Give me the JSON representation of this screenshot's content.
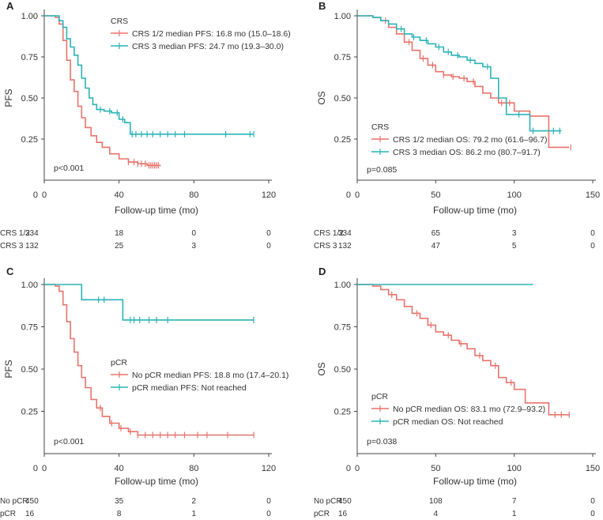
{
  "chart_data": [
    {
      "panel": "A",
      "type": "line",
      "xlabel": "Follow-up time (mo)",
      "ylabel": "PFS",
      "xlim": [
        0,
        120
      ],
      "xticks": [
        0,
        40,
        80,
        120
      ],
      "ylim": [
        0,
        1
      ],
      "yticks": [
        0.25,
        0.5,
        0.75,
        1.0
      ],
      "ytick_labels": [
        "0.25",
        "0.50",
        "0.75",
        "1.00"
      ],
      "legend_title": "CRS",
      "pvalue": "p<0.001",
      "series": [
        {
          "name": "CRS 1/2",
          "label": "CRS 1/2 median PFS: 16.8 mo (15.0–18.6)",
          "color": "#e8736c",
          "x": [
            0,
            6,
            8,
            10,
            12,
            14,
            16,
            18,
            20,
            22,
            25,
            28,
            31,
            35,
            40,
            45,
            50,
            55,
            62
          ],
          "y": [
            1.0,
            0.99,
            0.95,
            0.85,
            0.73,
            0.61,
            0.54,
            0.45,
            0.38,
            0.32,
            0.27,
            0.23,
            0.2,
            0.16,
            0.13,
            0.11,
            0.1,
            0.09,
            0.085
          ],
          "censor_x": [
            45,
            48,
            50,
            52,
            54,
            56,
            57,
            58,
            59,
            60,
            61
          ]
        },
        {
          "name": "CRS 3",
          "label": "CRS 3 median PFS: 24.7 mo (19.3–30.0)",
          "color": "#2ab3b7",
          "x": [
            0,
            8,
            10,
            12,
            14,
            16,
            18,
            20,
            22,
            24,
            26,
            28,
            32,
            36,
            40,
            43,
            46,
            112
          ],
          "y": [
            1.0,
            0.97,
            0.93,
            0.86,
            0.81,
            0.76,
            0.7,
            0.62,
            0.56,
            0.5,
            0.46,
            0.43,
            0.42,
            0.41,
            0.37,
            0.35,
            0.28,
            0.28
          ],
          "censor_x": [
            30,
            35,
            39,
            42,
            47,
            49,
            52,
            55,
            58,
            62,
            66,
            70,
            75,
            97,
            110,
            112
          ]
        }
      ],
      "risk_table": {
        "times": [
          0,
          40,
          80,
          120
        ],
        "rows": [
          {
            "label": "CRS 1/2",
            "values": [
              "334",
              "18",
              "0",
              "0"
            ]
          },
          {
            "label": "CRS 3",
            "values": [
              "132",
              "25",
              "3",
              "0"
            ]
          }
        ]
      }
    },
    {
      "panel": "B",
      "type": "line",
      "xlabel": "Follow-up time (mo)",
      "ylabel": "OS",
      "xlim": [
        0,
        150
      ],
      "xticks": [
        0,
        50,
        100,
        150
      ],
      "ylim": [
        0,
        1
      ],
      "yticks": [
        0.25,
        0.5,
        0.75,
        1.0
      ],
      "ytick_labels": [
        "0.25",
        "0.50",
        "0.75",
        "1.00"
      ],
      "legend_title": "CRS",
      "pvalue": "p=0.085",
      "series": [
        {
          "name": "CRS 1/2",
          "label": "CRS 1/2 median OS: 79.2 mo (61.6–96.7)",
          "color": "#e8736c",
          "x": [
            0,
            10,
            15,
            20,
            25,
            30,
            35,
            40,
            45,
            50,
            55,
            60,
            65,
            70,
            75,
            80,
            85,
            90,
            95,
            100,
            110,
            122,
            135
          ],
          "y": [
            1.0,
            0.99,
            0.97,
            0.93,
            0.89,
            0.84,
            0.79,
            0.74,
            0.7,
            0.66,
            0.64,
            0.63,
            0.62,
            0.6,
            0.57,
            0.53,
            0.5,
            0.47,
            0.47,
            0.42,
            0.39,
            0.2,
            0.2
          ],
          "censor_x": [
            18,
            33,
            42,
            48,
            55,
            61,
            68,
            74,
            92,
            97,
            136
          ]
        },
        {
          "name": "CRS 3",
          "label": "CRS 3 median OS: 86.2 mo (80.7–91.7)",
          "color": "#2ab3b7",
          "x": [
            0,
            10,
            15,
            20,
            25,
            30,
            35,
            40,
            45,
            50,
            55,
            60,
            65,
            70,
            75,
            80,
            85,
            90,
            95,
            100,
            105,
            110,
            130
          ],
          "y": [
            1.0,
            0.99,
            0.97,
            0.95,
            0.92,
            0.89,
            0.87,
            0.85,
            0.83,
            0.81,
            0.78,
            0.76,
            0.75,
            0.73,
            0.71,
            0.69,
            0.62,
            0.5,
            0.4,
            0.4,
            0.4,
            0.3,
            0.3
          ],
          "censor_x": [
            28,
            36,
            44,
            52,
            58,
            64,
            72,
            83,
            103,
            112,
            125,
            129
          ]
        }
      ],
      "risk_table": {
        "times": [
          0,
          50,
          100,
          150
        ],
        "rows": [
          {
            "label": "CRS 1/2",
            "values": [
              "334",
              "65",
              "3",
              "0"
            ]
          },
          {
            "label": "CRS 3",
            "values": [
              "132",
              "47",
              "5",
              "0"
            ]
          }
        ]
      }
    },
    {
      "panel": "C",
      "type": "line",
      "xlabel": "Follow-up time (mo)",
      "ylabel": "PFS",
      "xlim": [
        0,
        120
      ],
      "xticks": [
        0,
        40,
        80,
        120
      ],
      "ylim": [
        0,
        1
      ],
      "yticks": [
        0.25,
        0.5,
        0.75,
        1.0
      ],
      "ytick_labels": [
        "0.25",
        "0.50",
        "0.75",
        "1.00"
      ],
      "legend_title": "pCR",
      "pvalue": "p<0.001",
      "series": [
        {
          "name": "No pCR",
          "label": "No pCR median PFS: 18.8 mo (17.4–20.1)",
          "color": "#e8736c",
          "x": [
            0,
            6,
            8,
            10,
            12,
            14,
            16,
            18,
            20,
            22,
            25,
            28,
            31,
            35,
            40,
            45,
            50,
            112
          ],
          "y": [
            1.0,
            0.99,
            0.96,
            0.88,
            0.78,
            0.68,
            0.6,
            0.52,
            0.45,
            0.39,
            0.32,
            0.27,
            0.22,
            0.18,
            0.15,
            0.13,
            0.11,
            0.11
          ],
          "censor_x": [
            30,
            36,
            41,
            46,
            50,
            54,
            58,
            62,
            66,
            70,
            75,
            82,
            87,
            98,
            112
          ]
        },
        {
          "name": "pCR",
          "label": "pCR median PFS: Not reached",
          "color": "#2ab3b7",
          "x": [
            0,
            20,
            42,
            112
          ],
          "y": [
            1.0,
            0.91,
            0.79,
            0.79
          ],
          "censor_x": [
            29,
            32,
            46,
            48,
            51,
            56,
            60,
            66,
            112
          ]
        }
      ],
      "risk_table": {
        "times": [
          0,
          40,
          80,
          120
        ],
        "rows": [
          {
            "label": "No pCR",
            "values": [
              "450",
              "35",
              "2",
              "0"
            ]
          },
          {
            "label": "pCR",
            "values": [
              "16",
              "8",
              "1",
              "0"
            ]
          }
        ]
      }
    },
    {
      "panel": "D",
      "type": "line",
      "xlabel": "Follow-up time (mo)",
      "ylabel": "OS",
      "xlim": [
        0,
        150
      ],
      "xticks": [
        0,
        50,
        100,
        150
      ],
      "ylim": [
        0,
        1
      ],
      "yticks": [
        0.25,
        0.5,
        0.75,
        1.0
      ],
      "ytick_labels": [
        "0.25",
        "0.50",
        "0.75",
        "1.00"
      ],
      "legend_title": "pCR",
      "pvalue": "p=0.038",
      "series": [
        {
          "name": "No pCR",
          "label": "No pCR median OS: 83.1 mo (72.9–93.2)",
          "color": "#e8736c",
          "x": [
            0,
            10,
            15,
            20,
            25,
            30,
            35,
            40,
            45,
            50,
            55,
            60,
            65,
            70,
            75,
            80,
            85,
            90,
            95,
            100,
            107,
            122,
            135
          ],
          "y": [
            1.0,
            0.99,
            0.97,
            0.94,
            0.91,
            0.87,
            0.83,
            0.8,
            0.76,
            0.72,
            0.7,
            0.67,
            0.65,
            0.62,
            0.58,
            0.55,
            0.52,
            0.45,
            0.42,
            0.38,
            0.3,
            0.23,
            0.23
          ],
          "censor_x": [
            22,
            38,
            47,
            58,
            66,
            78,
            88,
            98,
            126,
            130,
            135
          ]
        },
        {
          "name": "pCR",
          "label": "pCR median OS: Not reached",
          "color": "#2ab3b7",
          "x": [
            0,
            112
          ],
          "y": [
            1.0,
            1.0
          ],
          "censor_x": []
        }
      ],
      "risk_table": {
        "times": [
          0,
          50,
          100,
          150
        ],
        "rows": [
          {
            "label": "No pCR",
            "values": [
              "450",
              "108",
              "7",
              "0"
            ]
          },
          {
            "label": "pCR",
            "values": [
              "16",
              "4",
              "1",
              "0"
            ]
          }
        ]
      }
    }
  ]
}
